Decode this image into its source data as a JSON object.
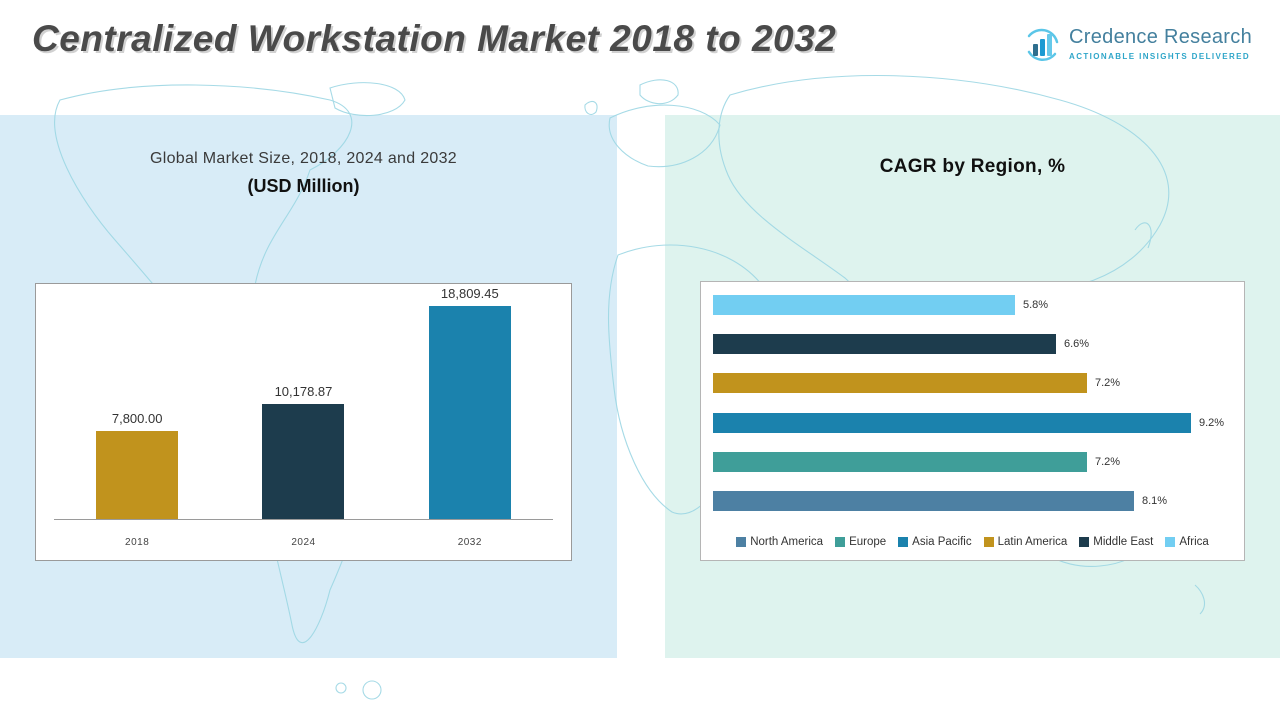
{
  "header": {
    "title": "Centralized Workstation Market 2018 to 2032",
    "logo": {
      "brand": "Credence Research",
      "tagline": "Actionable Insights Delivered"
    }
  },
  "left_panel": {
    "subtitle_line1": "Global Market Size, 2018, 2024 and 2032",
    "subtitle_line2": "(USD Million)"
  },
  "right_panel": {
    "title": "CAGR by Region, %"
  },
  "colors": {
    "left_panel_bg": "#d8ecf7",
    "right_panel_bg": "#def3ee",
    "map_line": "#9dd7e4",
    "title_text": "#4a4a4a",
    "brand_blue": "#44809e",
    "tagline_teal": "#2fa6c9"
  },
  "chart_data": [
    {
      "type": "bar",
      "title": "Global Market Size, 2018, 2024 and 2032 (USD Million)",
      "categories": [
        "2018",
        "2024",
        "2032"
      ],
      "values": [
        7800.0,
        10178.87,
        18809.45
      ],
      "labels": [
        "7,800.00",
        "10,178.87",
        "18,809.45"
      ],
      "bar_colors": [
        "#c1931d",
        "#1d3c4d",
        "#1b82ad"
      ],
      "xlabel": "",
      "ylabel": "USD Million",
      "ylim": [
        0,
        20000
      ],
      "grid": false,
      "legend_position": "none"
    },
    {
      "type": "bar-horizontal",
      "title": "CAGR by Region, %",
      "categories": [
        "Africa",
        "Middle East",
        "Latin America",
        "Asia Pacific",
        "Europe",
        "North America"
      ],
      "values": [
        5.8,
        6.6,
        7.2,
        9.2,
        7.2,
        8.1
      ],
      "labels": [
        "5.8%",
        "6.6%",
        "7.2%",
        "9.2%",
        "7.2%",
        "8.1%"
      ],
      "bar_colors": [
        "#72cef2",
        "#1d3c4d",
        "#c1931d",
        "#1b82ad",
        "#3f9e99",
        "#4d80a3"
      ],
      "xlabel": "CAGR %",
      "ylabel": "",
      "xlim": [
        0,
        10
      ],
      "grid": false,
      "legend_position": "bottom",
      "legend": [
        {
          "label": "North America",
          "color": "#4d80a3"
        },
        {
          "label": "Europe",
          "color": "#3f9e99"
        },
        {
          "label": "Asia Pacific",
          "color": "#1b82ad"
        },
        {
          "label": "Latin America",
          "color": "#c1931d"
        },
        {
          "label": "Middle East",
          "color": "#1d3c4d"
        },
        {
          "label": "Africa",
          "color": "#72cef2"
        }
      ]
    }
  ]
}
